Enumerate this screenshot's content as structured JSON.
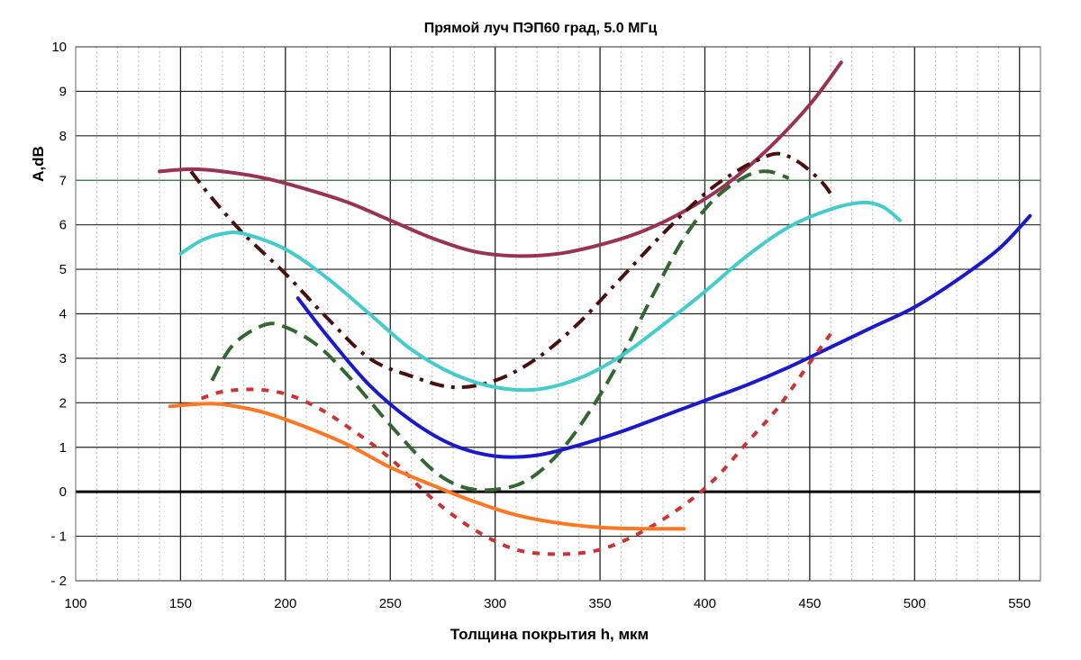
{
  "chart_data": {
    "type": "line",
    "title": "Прямой луч ПЭП60 град, 5.0 МГц",
    "xlabel": "Толщина покрытия h, мкм",
    "ylabel": "A,dB",
    "xlim": [
      100,
      560
    ],
    "ylim": [
      -2,
      10
    ],
    "x_ticks": [
      100,
      150,
      200,
      250,
      300,
      350,
      400,
      450,
      500,
      550
    ],
    "y_ticks": [
      -2,
      -1,
      0,
      1,
      2,
      3,
      4,
      5,
      6,
      7,
      8,
      9,
      10
    ],
    "grid": true,
    "series": [
      {
        "name": "purple",
        "color": "#993355",
        "style": "solid",
        "x": [
          140,
          155,
          170,
          190,
          210,
          230,
          250,
          270,
          290,
          310,
          330,
          350,
          370,
          390,
          410,
          430,
          450,
          465
        ],
        "y": [
          7.2,
          7.25,
          7.2,
          7.05,
          6.8,
          6.5,
          6.1,
          5.7,
          5.4,
          5.3,
          5.35,
          5.55,
          5.85,
          6.3,
          6.9,
          7.7,
          8.7,
          9.65
        ]
      },
      {
        "name": "dark-dashdot",
        "color": "#4a1010",
        "style": "dashdot",
        "x": [
          155,
          165,
          180,
          200,
          220,
          240,
          260,
          280,
          300,
          320,
          340,
          360,
          380,
          400,
          415,
          425,
          435,
          445,
          455,
          460
        ],
        "y": [
          7.2,
          6.6,
          5.8,
          4.9,
          3.9,
          3.0,
          2.6,
          2.35,
          2.5,
          3.0,
          3.8,
          4.8,
          5.8,
          6.7,
          7.2,
          7.45,
          7.6,
          7.4,
          7.0,
          6.7
        ]
      },
      {
        "name": "green-dashed",
        "color": "#336633",
        "style": "dashed",
        "x": [
          165,
          175,
          190,
          200,
          215,
          230,
          250,
          270,
          285,
          300,
          315,
          330,
          345,
          360,
          375,
          390,
          405,
          420,
          430,
          440
        ],
        "y": [
          2.5,
          3.3,
          3.75,
          3.7,
          3.3,
          2.6,
          1.5,
          0.5,
          0.1,
          0.05,
          0.25,
          0.85,
          1.8,
          3.0,
          4.4,
          5.7,
          6.6,
          7.1,
          7.2,
          7.05
        ]
      },
      {
        "name": "cyan",
        "color": "#44cccc",
        "style": "solid",
        "x": [
          150,
          160,
          170,
          180,
          200,
          220,
          240,
          260,
          280,
          300,
          320,
          340,
          360,
          380,
          400,
          420,
          440,
          460,
          475,
          485,
          493
        ],
        "y": [
          5.35,
          5.65,
          5.8,
          5.8,
          5.45,
          4.8,
          4.0,
          3.2,
          2.65,
          2.35,
          2.3,
          2.55,
          3.05,
          3.75,
          4.5,
          5.3,
          5.95,
          6.35,
          6.5,
          6.4,
          6.1
        ]
      },
      {
        "name": "blue",
        "color": "#1a1acc",
        "style": "solid",
        "x": [
          206,
          220,
          240,
          260,
          280,
          300,
          320,
          340,
          360,
          380,
          400,
          420,
          440,
          460,
          480,
          500,
          520,
          540,
          555
        ],
        "y": [
          4.35,
          3.5,
          2.4,
          1.6,
          1.05,
          0.8,
          0.82,
          1.05,
          1.35,
          1.7,
          2.05,
          2.4,
          2.8,
          3.25,
          3.7,
          4.15,
          4.75,
          5.45,
          6.2
        ]
      },
      {
        "name": "red-dotted",
        "color": "#cc3333",
        "style": "dotted",
        "x": [
          160,
          170,
          185,
          200,
          215,
          230,
          250,
          270,
          290,
          310,
          330,
          350,
          370,
          390,
          405,
          420,
          435,
          450,
          460
        ],
        "y": [
          2.1,
          2.25,
          2.3,
          2.2,
          1.9,
          1.45,
          0.75,
          -0.15,
          -0.85,
          -1.3,
          -1.4,
          -1.3,
          -0.9,
          -0.3,
          0.3,
          1.1,
          1.9,
          2.9,
          3.55
        ]
      },
      {
        "name": "orange",
        "color": "#ff7722",
        "style": "solid",
        "x": [
          145,
          155,
          165,
          175,
          190,
          210,
          230,
          250,
          270,
          290,
          310,
          330,
          350,
          370,
          390
        ],
        "y": [
          1.92,
          1.96,
          1.98,
          1.93,
          1.78,
          1.45,
          1.05,
          0.55,
          0.15,
          -0.22,
          -0.52,
          -0.7,
          -0.8,
          -0.83,
          -0.83
        ]
      }
    ]
  }
}
